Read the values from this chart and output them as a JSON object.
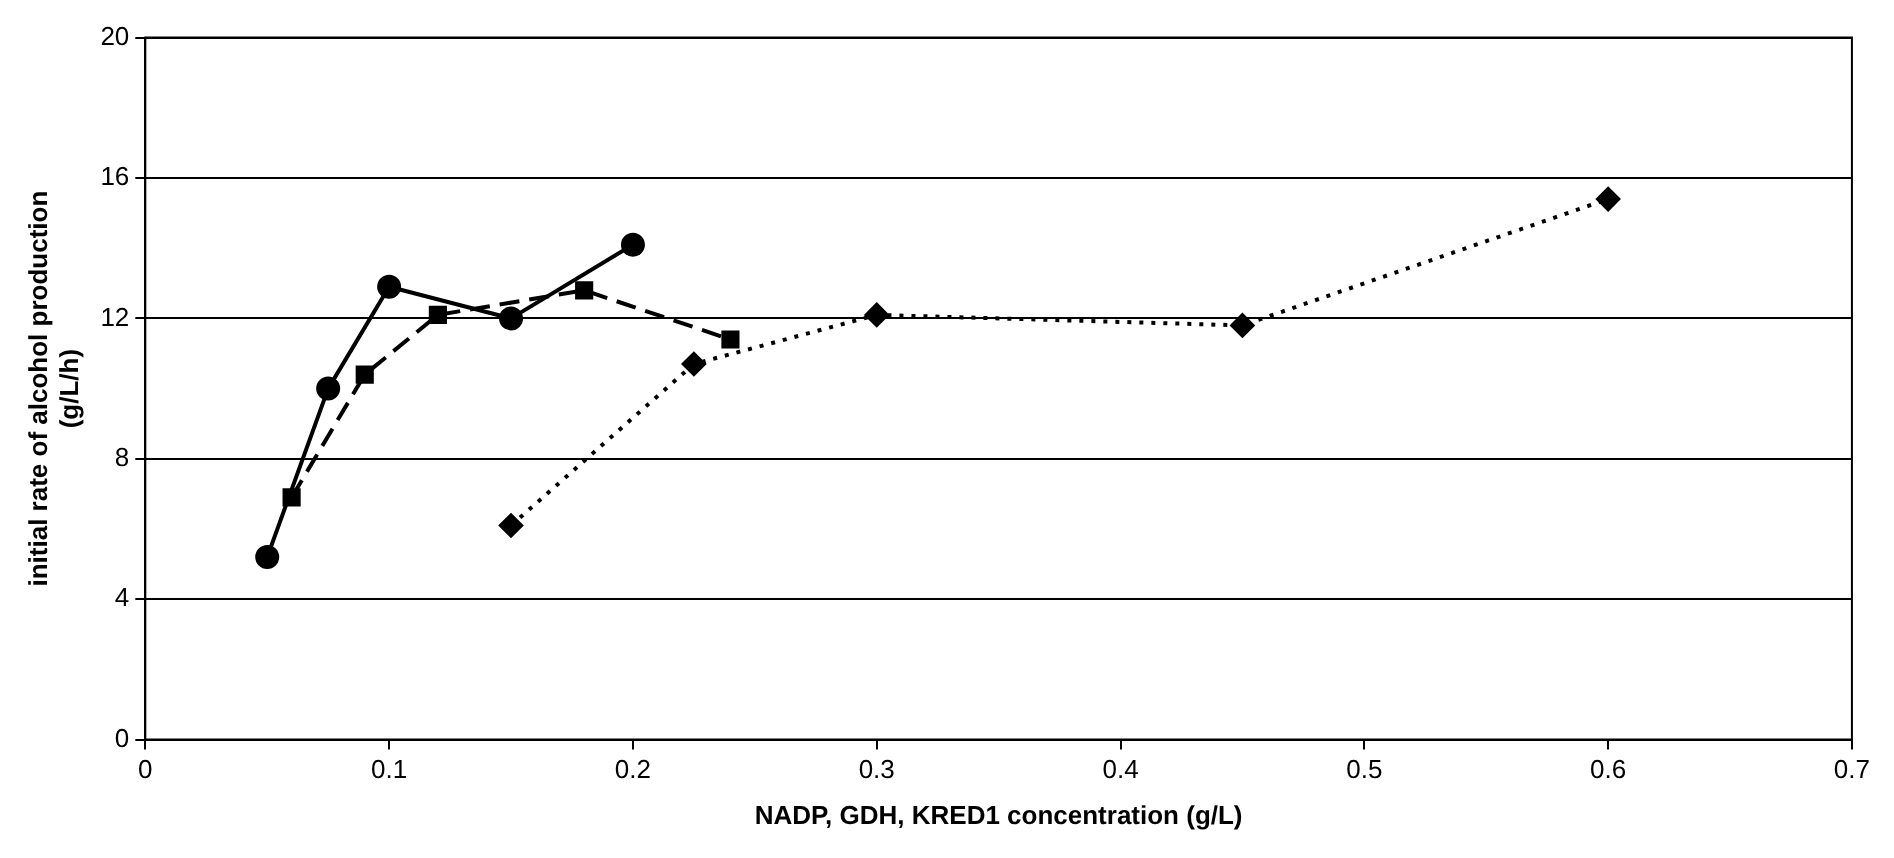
{
  "chart_data": {
    "type": "line",
    "xlabel": "NADP, GDH, KRED1 concentration (g/L)",
    "ylabel": "initial rate of alcohol production\n(g/L/h)",
    "xlim": [
      0,
      0.7
    ],
    "xticks": [
      0,
      0.1,
      0.2,
      0.3,
      0.4,
      0.5,
      0.6,
      0.7
    ],
    "ylim": [
      0,
      20
    ],
    "yticks": [
      0,
      4,
      8,
      12,
      16,
      20
    ],
    "grid": "y",
    "legend": false,
    "series": [
      {
        "color": "#000000",
        "marker": "circle",
        "line_style": "solid",
        "x": [
          0.05,
          0.075,
          0.1,
          0.15,
          0.2
        ],
        "values": [
          5.2,
          10.0,
          12.9,
          12.0,
          14.1
        ]
      },
      {
        "color": "#000000",
        "marker": "square",
        "line_style": "dashed",
        "x": [
          0.06,
          0.09,
          0.12,
          0.18,
          0.24
        ],
        "values": [
          6.9,
          10.4,
          12.1,
          12.8,
          11.4
        ]
      },
      {
        "color": "#000000",
        "marker": "diamond",
        "line_style": "dotted",
        "x": [
          0.15,
          0.225,
          0.3,
          0.45,
          0.6
        ],
        "values": [
          6.1,
          10.7,
          12.1,
          11.8,
          15.4
        ]
      }
    ]
  }
}
